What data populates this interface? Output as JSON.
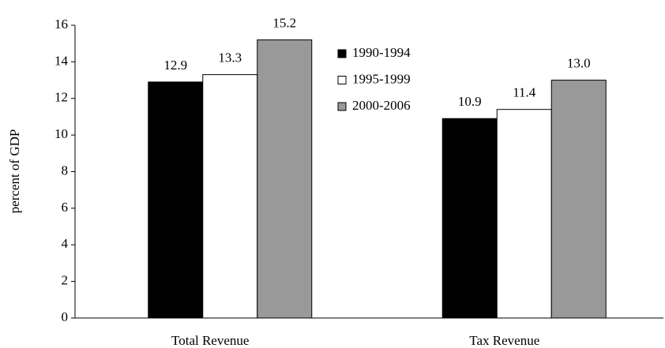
{
  "chart_data": {
    "type": "bar",
    "y_label": "percent of GDP",
    "categories": [
      "Total Revenue",
      "Tax Revenue"
    ],
    "series": [
      {
        "name": "1990-1994",
        "color": "#000000",
        "values": [
          12.9,
          10.9
        ],
        "value_labels": [
          "12.9",
          "10.9"
        ]
      },
      {
        "name": "1995-1999",
        "color": "#ffffff",
        "values": [
          13.3,
          11.4
        ],
        "value_labels": [
          "13.3",
          "11.4"
        ]
      },
      {
        "name": "2000-2006",
        "color": "#999999",
        "values": [
          15.2,
          13.0
        ],
        "value_labels": [
          "15.2",
          "13.0"
        ]
      }
    ],
    "ylim": [
      0,
      16
    ],
    "yticks": [
      0,
      2,
      4,
      6,
      8,
      10,
      12,
      14,
      16
    ],
    "grid": false,
    "legend": "top-center"
  }
}
